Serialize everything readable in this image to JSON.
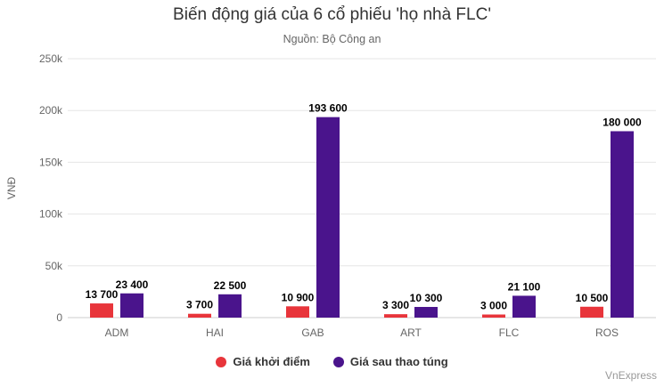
{
  "chart_data": {
    "type": "bar",
    "title": "Biến động giá của 6 cổ phiếu 'họ nhà FLC'",
    "subtitle": "Nguồn: Bộ Công an",
    "ylabel": "VNĐ",
    "xlabel": "",
    "ylim": [
      0,
      250000
    ],
    "yticks": [
      0,
      50000,
      100000,
      150000,
      200000,
      250000
    ],
    "ytick_labels": [
      "0",
      "50k",
      "100k",
      "150k",
      "200k",
      "250k"
    ],
    "categories": [
      "ADM",
      "HAI",
      "GAB",
      "ART",
      "FLC",
      "ROS"
    ],
    "series": [
      {
        "name": "Giá khởi điểm",
        "color": "#e8353b",
        "values": [
          13700,
          3700,
          10900,
          3300,
          3000,
          10500
        ],
        "labels": [
          "13 700",
          "3 700",
          "10 900",
          "3 300",
          "3 000",
          "10 500"
        ]
      },
      {
        "name": "Giá sau thao túng",
        "color": "#4a148c",
        "values": [
          23400,
          22500,
          193600,
          10300,
          21100,
          180000
        ],
        "labels": [
          "23 400",
          "22 500",
          "193 600",
          "10 300",
          "21 100",
          "180 000"
        ]
      }
    ],
    "legend_position": "bottom",
    "grid": true,
    "credit": "VnExpress"
  }
}
